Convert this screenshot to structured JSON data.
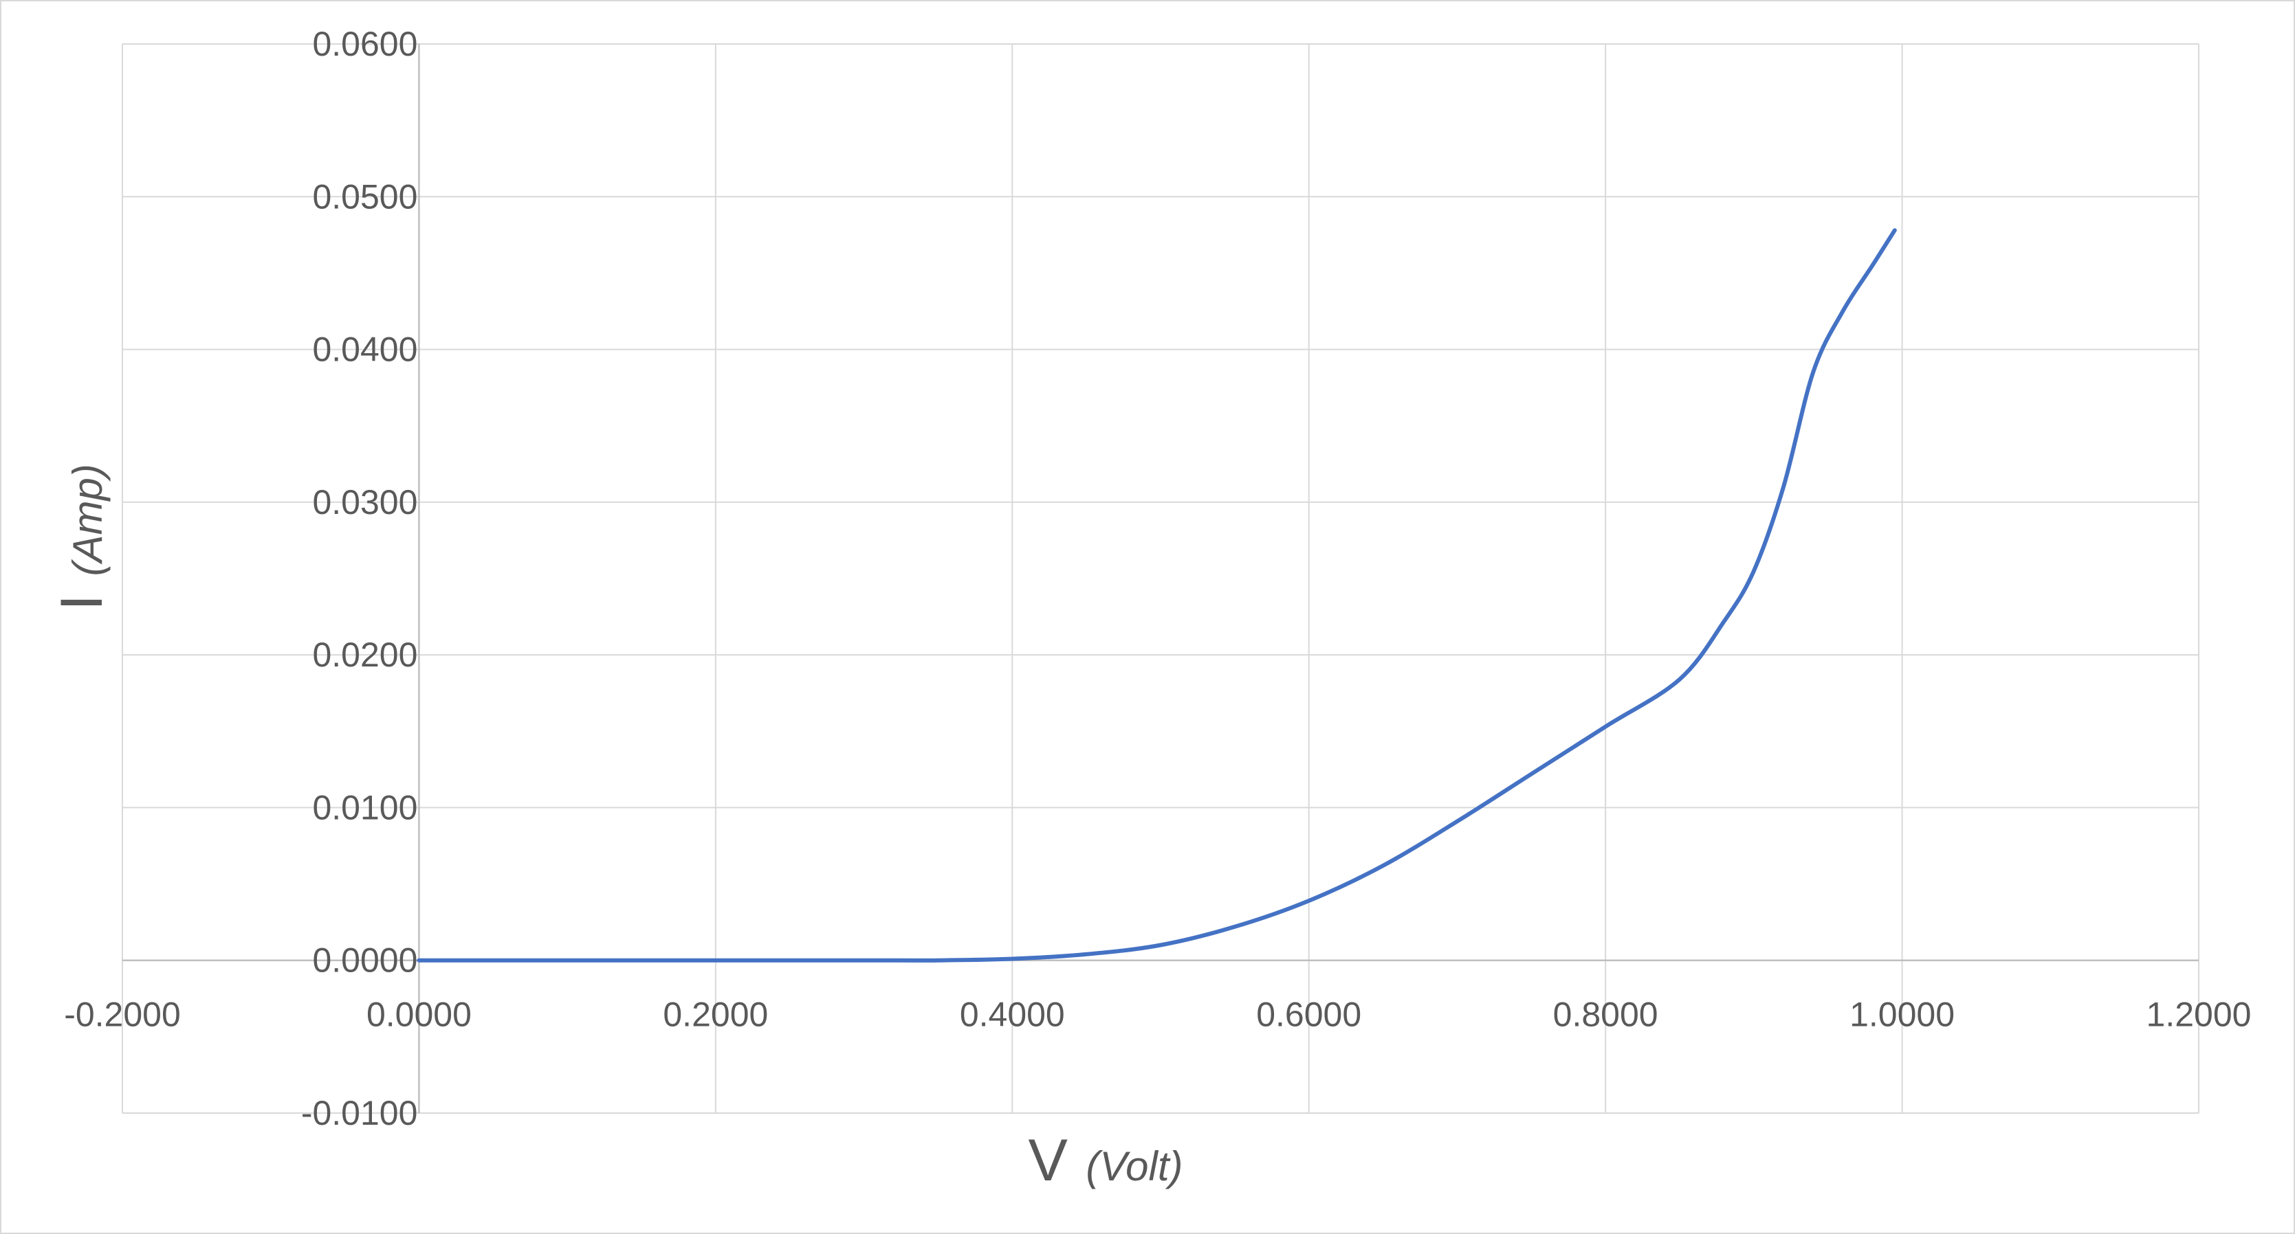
{
  "chart_data": {
    "type": "line",
    "title": "",
    "xlabel": {
      "main": "V",
      "unit": "(Volt)"
    },
    "ylabel": {
      "main": "I",
      "unit": "(Amp)"
    },
    "xlim": [
      -0.2,
      1.2
    ],
    "ylim": [
      -0.01,
      0.06
    ],
    "x_ticks": [
      -0.2,
      0.0,
      0.2,
      0.4,
      0.6,
      0.8,
      1.0,
      1.2
    ],
    "x_tick_labels": [
      "-0.2000",
      "0.0000",
      "0.2000",
      "0.4000",
      "0.6000",
      "0.8000",
      "1.0000",
      "1.2000"
    ],
    "y_ticks": [
      -0.01,
      0.0,
      0.01,
      0.02,
      0.03,
      0.04,
      0.05,
      0.06
    ],
    "y_tick_labels": [
      "-0.0100",
      "0.0000",
      "0.0100",
      "0.0200",
      "0.0300",
      "0.0400",
      "0.0500",
      "0.0600"
    ],
    "grid": true,
    "legend": "none",
    "series": [
      {
        "color": "#4472c4",
        "x": [
          0.0,
          0.1,
          0.2,
          0.3,
          0.35,
          0.4,
          0.45,
          0.5,
          0.55,
          0.6,
          0.65,
          0.7,
          0.75,
          0.8,
          0.85,
          0.88,
          0.9,
          0.92,
          0.94,
          0.96,
          0.98,
          0.995
        ],
        "y": [
          0.0,
          0.0,
          0.0,
          0.0,
          0.0,
          0.0001,
          0.0004,
          0.001,
          0.0022,
          0.0039,
          0.0062,
          0.0091,
          0.0122,
          0.0153,
          0.0184,
          0.0222,
          0.0255,
          0.031,
          0.0385,
          0.0425,
          0.0455,
          0.0478
        ]
      }
    ]
  }
}
